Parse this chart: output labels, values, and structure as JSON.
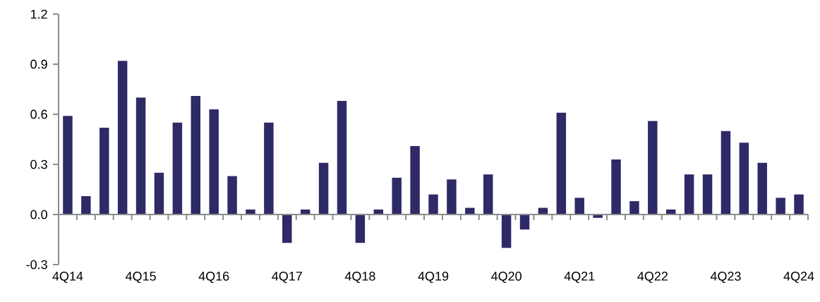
{
  "chart_data": {
    "type": "bar",
    "categories": [
      "4Q14",
      null,
      null,
      null,
      "4Q15",
      null,
      null,
      null,
      "4Q16",
      null,
      null,
      null,
      "4Q17",
      null,
      null,
      null,
      "4Q18",
      null,
      null,
      null,
      "4Q19",
      null,
      null,
      null,
      "4Q20",
      null,
      null,
      null,
      "4Q21",
      null,
      null,
      null,
      "4Q22",
      null,
      null,
      null,
      "4Q23",
      null,
      null,
      null,
      "4Q24"
    ],
    "values": [
      0.59,
      0.11,
      0.52,
      0.92,
      0.7,
      0.25,
      0.55,
      0.71,
      0.63,
      0.23,
      0.03,
      0.55,
      -0.17,
      0.03,
      0.31,
      0.68,
      -0.17,
      0.03,
      0.22,
      0.41,
      0.12,
      0.21,
      0.04,
      0.24,
      -0.2,
      -0.09,
      0.04,
      0.61,
      0.1,
      -0.02,
      0.33,
      0.08,
      0.56,
      0.03,
      0.24,
      0.24,
      0.5,
      0.43,
      0.31,
      0.1,
      0.12
    ],
    "color": "#2e2a66",
    "ylim": [
      -0.3,
      1.2
    ],
    "yticks": [
      {
        "value": -0.3,
        "label": "-0.3"
      },
      {
        "value": 0,
        "label": "0.0"
      },
      {
        "value": 0.3,
        "label": "0.3"
      },
      {
        "value": 0.6,
        "label": "0.6"
      },
      {
        "value": 0.9,
        "label": "0.9"
      },
      {
        "value": 1.2,
        "label": "1.2"
      }
    ],
    "ref_lines": [
      {
        "axis": "y",
        "value": 0,
        "color": "#8c8c8c"
      }
    ],
    "grid": false
  }
}
